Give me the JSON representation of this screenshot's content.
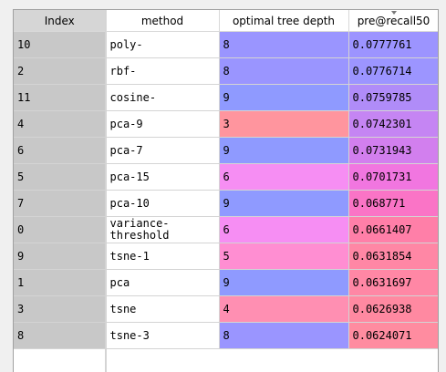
{
  "table": {
    "columns": [
      {
        "key": "index",
        "label": "Index"
      },
      {
        "key": "method",
        "label": "method"
      },
      {
        "key": "depth",
        "label": "optimal tree depth"
      },
      {
        "key": "score",
        "label": "pre@recall50",
        "sorted": "descending"
      }
    ],
    "rows": [
      {
        "index": "10",
        "method": "poly-",
        "depth": "8",
        "score": "0.0777761",
        "depth_color": "#9a95ff",
        "score_color": "#9c94ff"
      },
      {
        "index": "2",
        "method": "rbf-",
        "depth": "8",
        "score": "0.0776714",
        "depth_color": "#9a95ff",
        "score_color": "#9c95ff"
      },
      {
        "index": "11",
        "method": "cosine-",
        "depth": "9",
        "score": "0.0759785",
        "depth_color": "#8f9aff",
        "score_color": "#b08cf8"
      },
      {
        "index": "4",
        "method": "pca-9",
        "depth": "3",
        "score": "0.0742301",
        "depth_color": "#ff959e",
        "score_color": "#c585f3"
      },
      {
        "index": "6",
        "method": "pca-7",
        "depth": "9",
        "score": "0.0731943",
        "depth_color": "#8f9aff",
        "score_color": "#d27fee"
      },
      {
        "index": "5",
        "method": "pca-15",
        "depth": "6",
        "score": "0.0701731",
        "depth_color": "#f68ef3",
        "score_color": "#f176e0"
      },
      {
        "index": "7",
        "method": "pca-10",
        "depth": "9",
        "score": "0.068771",
        "depth_color": "#8f9aff",
        "score_color": "#fa74c6"
      },
      {
        "index": "0",
        "method": "variance-\nthreshold",
        "depth": "6",
        "score": "0.0661407",
        "depth_color": "#f68ef3",
        "score_color": "#ff7fa8"
      },
      {
        "index": "9",
        "method": "tsne-1",
        "depth": "5",
        "score": "0.0631854",
        "depth_color": "#ff8ed2",
        "score_color": "#ff87a5"
      },
      {
        "index": "1",
        "method": "pca",
        "depth": "9",
        "score": "0.0631697",
        "depth_color": "#8f9aff",
        "score_color": "#ff87a5"
      },
      {
        "index": "3",
        "method": "tsne",
        "depth": "4",
        "score": "0.0626938",
        "depth_color": "#ff8fb2",
        "score_color": "#ff89a1"
      },
      {
        "index": "8",
        "method": "tsne-3",
        "depth": "8",
        "score": "0.0624071",
        "depth_color": "#9a95ff",
        "score_color": "#ff8ca0"
      }
    ]
  }
}
